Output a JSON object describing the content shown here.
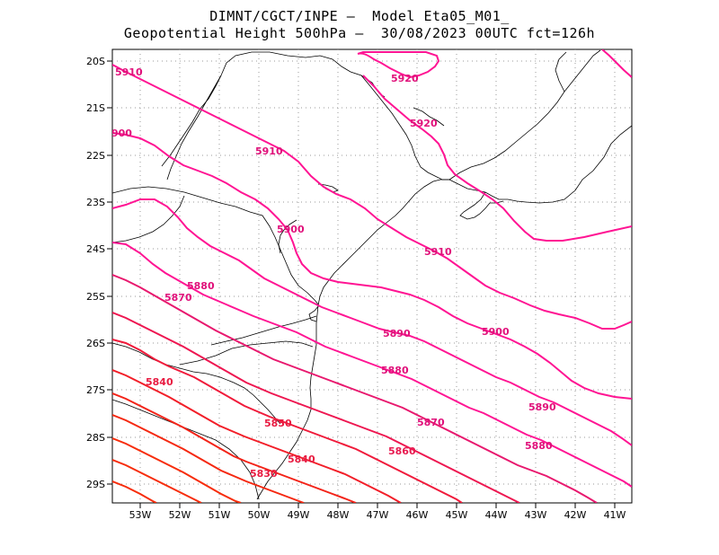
{
  "title": {
    "line1": "DIMNT/CGCT/INPE —  Model Eta05_M01_",
    "line2": "Geopotential Height 500hPa —  30/08/2023 00UTC fct=126h"
  },
  "map": {
    "lon_range": [
      -53.6,
      -40.5
    ],
    "lat_range": [
      -20.0,
      -29.4
    ],
    "lon_ticks": [
      "53W",
      "52W",
      "51W",
      "50W",
      "49W",
      "48W",
      "47W",
      "46W",
      "45W",
      "44W",
      "43W",
      "42W",
      "41W"
    ],
    "lat_ticks": [
      "20S",
      "21S",
      "22S",
      "23S",
      "24S",
      "25S",
      "26S",
      "27S",
      "28S",
      "29S"
    ],
    "grid": "dotted",
    "colors": {
      "high": "#ff1493",
      "low": "#ff2200",
      "coast": "#000000"
    }
  },
  "contours": [
    {
      "value": 5920,
      "color": "#ff1493"
    },
    {
      "value": 5910,
      "color": "#ff1493"
    },
    {
      "value": 5900,
      "color": "#ff1493"
    },
    {
      "value": 5890,
      "color": "#ff1493"
    },
    {
      "value": 5880,
      "color": "#ff1493"
    },
    {
      "value": 5870,
      "color": "#e8186e"
    },
    {
      "value": 5860,
      "color": "#ee1650"
    },
    {
      "value": 5850,
      "color": "#f01a3a"
    },
    {
      "value": 5840,
      "color": "#f21e28"
    },
    {
      "value": 5830,
      "color": "#f32318"
    },
    {
      "value": 5820,
      "color": "#f52810"
    },
    {
      "value": 5810,
      "color": "#f72c0a"
    }
  ],
  "contour_labels": [
    {
      "text": "5910",
      "contour": 5910
    },
    {
      "text": "5920",
      "contour": 5920
    },
    {
      "text": "5920",
      "contour": 5920
    },
    {
      "text": "900",
      "contour": 5900
    },
    {
      "text": "5910",
      "contour": 5910
    },
    {
      "text": "5900",
      "contour": 5900
    },
    {
      "text": "5910",
      "contour": 5910
    },
    {
      "text": "5880",
      "contour": 5880
    },
    {
      "text": "5870",
      "contour": 5870
    },
    {
      "text": "5890",
      "contour": 5890
    },
    {
      "text": "5900",
      "contour": 5900
    },
    {
      "text": "5880",
      "contour": 5880
    },
    {
      "text": "5840",
      "contour": 5840
    },
    {
      "text": "5890",
      "contour": 5890
    },
    {
      "text": "5850",
      "contour": 5850
    },
    {
      "text": "5870",
      "contour": 5870
    },
    {
      "text": "5880",
      "contour": 5880
    },
    {
      "text": "5860",
      "contour": 5860
    },
    {
      "text": "5840",
      "contour": 5840
    },
    {
      "text": "5830",
      "contour": 5830
    }
  ]
}
